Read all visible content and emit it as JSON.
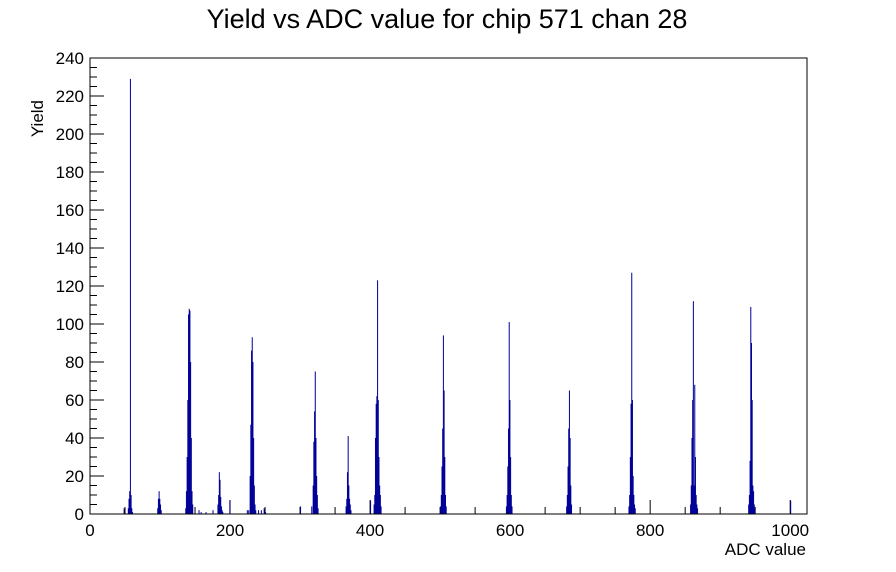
{
  "chart_data": {
    "type": "bar",
    "title": "Yield vs ADC value for chip 571 chan 28",
    "xlabel": "ADC value",
    "ylabel": "Yield",
    "xlim": [
      0,
      1024
    ],
    "ylim": [
      0,
      240
    ],
    "x_ticks": [
      0,
      200,
      400,
      600,
      800,
      1000
    ],
    "y_ticks": [
      0,
      20,
      40,
      60,
      80,
      100,
      120,
      140,
      160,
      180,
      200,
      220,
      240
    ],
    "grid": false,
    "legend": "none",
    "line_color": "#000099",
    "series": [
      {
        "x": [
          48,
          54,
          55,
          56,
          57,
          58,
          59,
          60,
          96,
          97,
          98,
          99,
          100,
          101,
          136,
          137,
          138,
          139,
          140,
          141,
          142,
          143,
          144,
          145,
          146,
          155,
          158,
          165,
          175,
          182,
          183,
          184,
          185,
          186,
          187,
          188,
          189,
          199,
          224,
          226,
          228,
          229,
          230,
          231,
          232,
          233,
          234,
          235,
          236,
          240,
          244,
          248,
          250,
          300,
          316,
          318,
          319,
          320,
          321,
          322,
          323,
          324,
          325,
          365,
          366,
          367,
          368,
          369,
          370,
          371,
          372,
          400,
          405,
          406,
          407,
          408,
          409,
          410,
          411,
          412,
          413,
          414,
          415,
          500,
          501,
          502,
          503,
          504,
          505,
          506,
          507,
          508,
          594,
          595,
          596,
          597,
          598,
          599,
          600,
          601,
          602,
          680,
          681,
          682,
          683,
          684,
          685,
          686,
          687,
          769,
          770,
          771,
          772,
          773,
          774,
          775,
          776,
          777,
          778,
          857,
          858,
          859,
          860,
          861,
          862,
          863,
          864,
          865,
          866,
          867,
          940,
          941,
          942,
          943,
          944,
          945,
          946,
          947,
          948,
          949,
          1000
        ],
        "values": [
          3,
          3,
          8,
          12,
          229,
          10,
          3,
          1,
          3,
          8,
          12,
          8,
          5,
          2,
          3,
          12,
          30,
          60,
          105,
          108,
          107,
          80,
          40,
          12,
          5,
          2,
          1,
          1,
          2,
          5,
          10,
          22,
          18,
          9,
          4,
          2,
          1,
          7,
          2,
          2,
          20,
          47,
          86,
          93,
          80,
          40,
          15,
          5,
          2,
          2,
          2,
          3,
          1,
          4,
          4,
          15,
          38,
          54,
          75,
          40,
          20,
          10,
          3,
          4,
          8,
          22,
          41,
          15,
          8,
          5,
          2,
          7,
          5,
          10,
          40,
          58,
          62,
          123,
          60,
          30,
          15,
          10,
          4,
          4,
          10,
          25,
          45,
          94,
          65,
          30,
          10,
          4,
          4,
          10,
          25,
          45,
          101,
          60,
          30,
          10,
          4,
          4,
          10,
          25,
          45,
          65,
          40,
          15,
          5,
          4,
          10,
          30,
          58,
          127,
          60,
          20,
          10,
          5,
          3,
          5,
          15,
          40,
          60,
          112,
          15,
          68,
          30,
          10,
          5,
          3,
          5,
          10,
          28,
          109,
          90,
          60,
          15,
          12,
          5,
          3,
          7
        ]
      }
    ]
  }
}
